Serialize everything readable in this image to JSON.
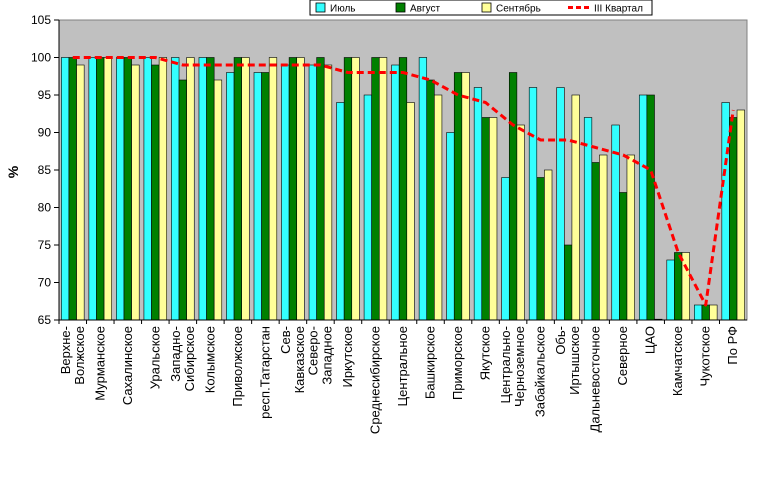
{
  "chart_data": {
    "type": "bar",
    "ylabel": "%",
    "ylim": [
      65,
      105
    ],
    "yticks": [
      "65",
      "70",
      "75",
      "80",
      "85",
      "90",
      "95",
      "100",
      "105"
    ],
    "grid": false,
    "legend_position": "top-right",
    "categories": [
      "Верхне-Волжское",
      "Мурманское",
      "Сахалинское",
      "Уральское",
      "Западно-Сибирское",
      "Колымское",
      "Приволжское",
      "респ.Татарстан",
      "Сев-Кавказское",
      "Северо-Западное",
      "Иркутское",
      "Среднесибирское",
      "Центральное",
      "Башкирское",
      "Приморское",
      "Якутское",
      "Центрально-Черноземное",
      "Забайкальское",
      "Обь-Иртышское",
      "Дальневосточное",
      "Северное",
      "ЦАО",
      "Камчатское",
      "Чукотское",
      "По РФ"
    ],
    "category_lines": [
      [
        "Верхне-",
        "Волжское"
      ],
      [
        "Мурманское"
      ],
      [
        "Сахалинское"
      ],
      [
        "Уральское"
      ],
      [
        "Западно-",
        "Сибирское"
      ],
      [
        "Колымское"
      ],
      [
        "Приволжское"
      ],
      [
        "респ.Татарстан"
      ],
      [
        "Сев-",
        "Кавказское"
      ],
      [
        "Северо-",
        "Западное"
      ],
      [
        "Иркутское"
      ],
      [
        "Среднесибирское"
      ],
      [
        "Центральное"
      ],
      [
        "Башкирское"
      ],
      [
        "Приморское"
      ],
      [
        "Якутское"
      ],
      [
        "Центрально-",
        "Черноземное"
      ],
      [
        "Забайкальское"
      ],
      [
        "Обь-",
        "Иртышское"
      ],
      [
        "Дальневосточное"
      ],
      [
        "Северное"
      ],
      [
        "ЦАО"
      ],
      [
        "Камчатское"
      ],
      [
        "Чукотское"
      ],
      [
        "По РФ"
      ]
    ],
    "series": [
      {
        "name": "Июль",
        "color": "#33ffff",
        "type": "bar",
        "values": [
          100,
          100,
          100,
          100,
          100,
          100,
          98,
          98,
          99,
          99,
          94,
          95,
          99,
          100,
          90,
          96,
          84,
          96,
          96,
          92,
          91,
          95,
          73,
          67,
          94
        ]
      },
      {
        "name": "Август",
        "color": "#008000",
        "type": "bar",
        "values": [
          100,
          100,
          100,
          99,
          97,
          100,
          100,
          98,
          100,
          100,
          100,
          100,
          100,
          97,
          98,
          92,
          98,
          84,
          75,
          86,
          82,
          95,
          74,
          67,
          92
        ]
      },
      {
        "name": "Сентябрь",
        "color": "#ffff99",
        "type": "bar",
        "values": [
          99,
          100,
          99,
          100,
          100,
          97,
          100,
          100,
          100,
          99,
          100,
          100,
          94,
          95,
          98,
          92,
          91,
          85,
          95,
          87,
          87,
          65,
          74,
          67,
          93
        ]
      },
      {
        "name": "III Квартал",
        "color": "#ff0000",
        "type": "line",
        "values": [
          100,
          100,
          100,
          100,
          99,
          99,
          99,
          99,
          99,
          99,
          98,
          98,
          98,
          97,
          95,
          94,
          91,
          89,
          89,
          88,
          87,
          85,
          74,
          67,
          93
        ]
      }
    ]
  }
}
